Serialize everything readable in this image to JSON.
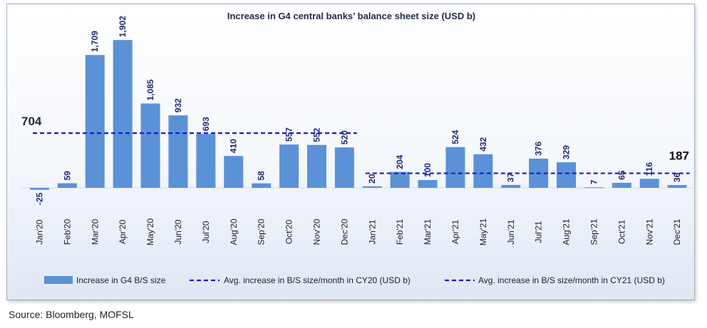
{
  "chart_data": {
    "type": "bar",
    "title": "Increase in G4 central banks’ balance sheet size (USD b)",
    "categories": [
      "Jan'20",
      "Feb'20",
      "Mar'20",
      "Apr'20",
      "May'20",
      "Jun'20",
      "Jul'20",
      "Aug'20",
      "Sep'20",
      "Oct'20",
      "Nov'20",
      "Dec'20",
      "Jan'21",
      "Feb'21",
      "Mar'21",
      "Apr'21",
      "May'21",
      "Jun'21",
      "Jul'21",
      "Aug'21",
      "Sep'21",
      "Oct'21",
      "Nov'21",
      "Dec'21"
    ],
    "series": [
      {
        "name": "Increase in G4 B/S size",
        "values": [
          -25,
          59,
          1709,
          1902,
          1085,
          932,
          693,
          410,
          58,
          557,
          552,
          520,
          20,
          204,
          100,
          524,
          432,
          37,
          376,
          329,
          7,
          65,
          116,
          36
        ],
        "value_labels": [
          "-25",
          "59",
          "1,709",
          "1,902",
          "1,085",
          "932",
          "693",
          "410",
          "58",
          "557",
          "552",
          "520",
          "20",
          "204",
          "100",
          "524",
          "432",
          "37",
          "376",
          "329",
          "7",
          "65",
          "116",
          "36"
        ],
        "color": "#5b91d6"
      },
      {
        "name": "Avg. increase in B/S size/month in CY20 (USD b)",
        "value": 704,
        "value_label": "704",
        "start": "Jan'20",
        "end": "Dec'20",
        "color": "#1a1acc"
      },
      {
        "name": "Avg. increase in B/S size/month in CY21 (USD b)",
        "value": 187,
        "value_label": "187",
        "start": "Jan'21",
        "end": "Dec'21",
        "color": "#1a1acc"
      }
    ],
    "ylim": [
      -120,
      2000
    ],
    "grid": false,
    "legend_position": "bottom"
  },
  "source": "Source: Bloomberg, MOFSL"
}
